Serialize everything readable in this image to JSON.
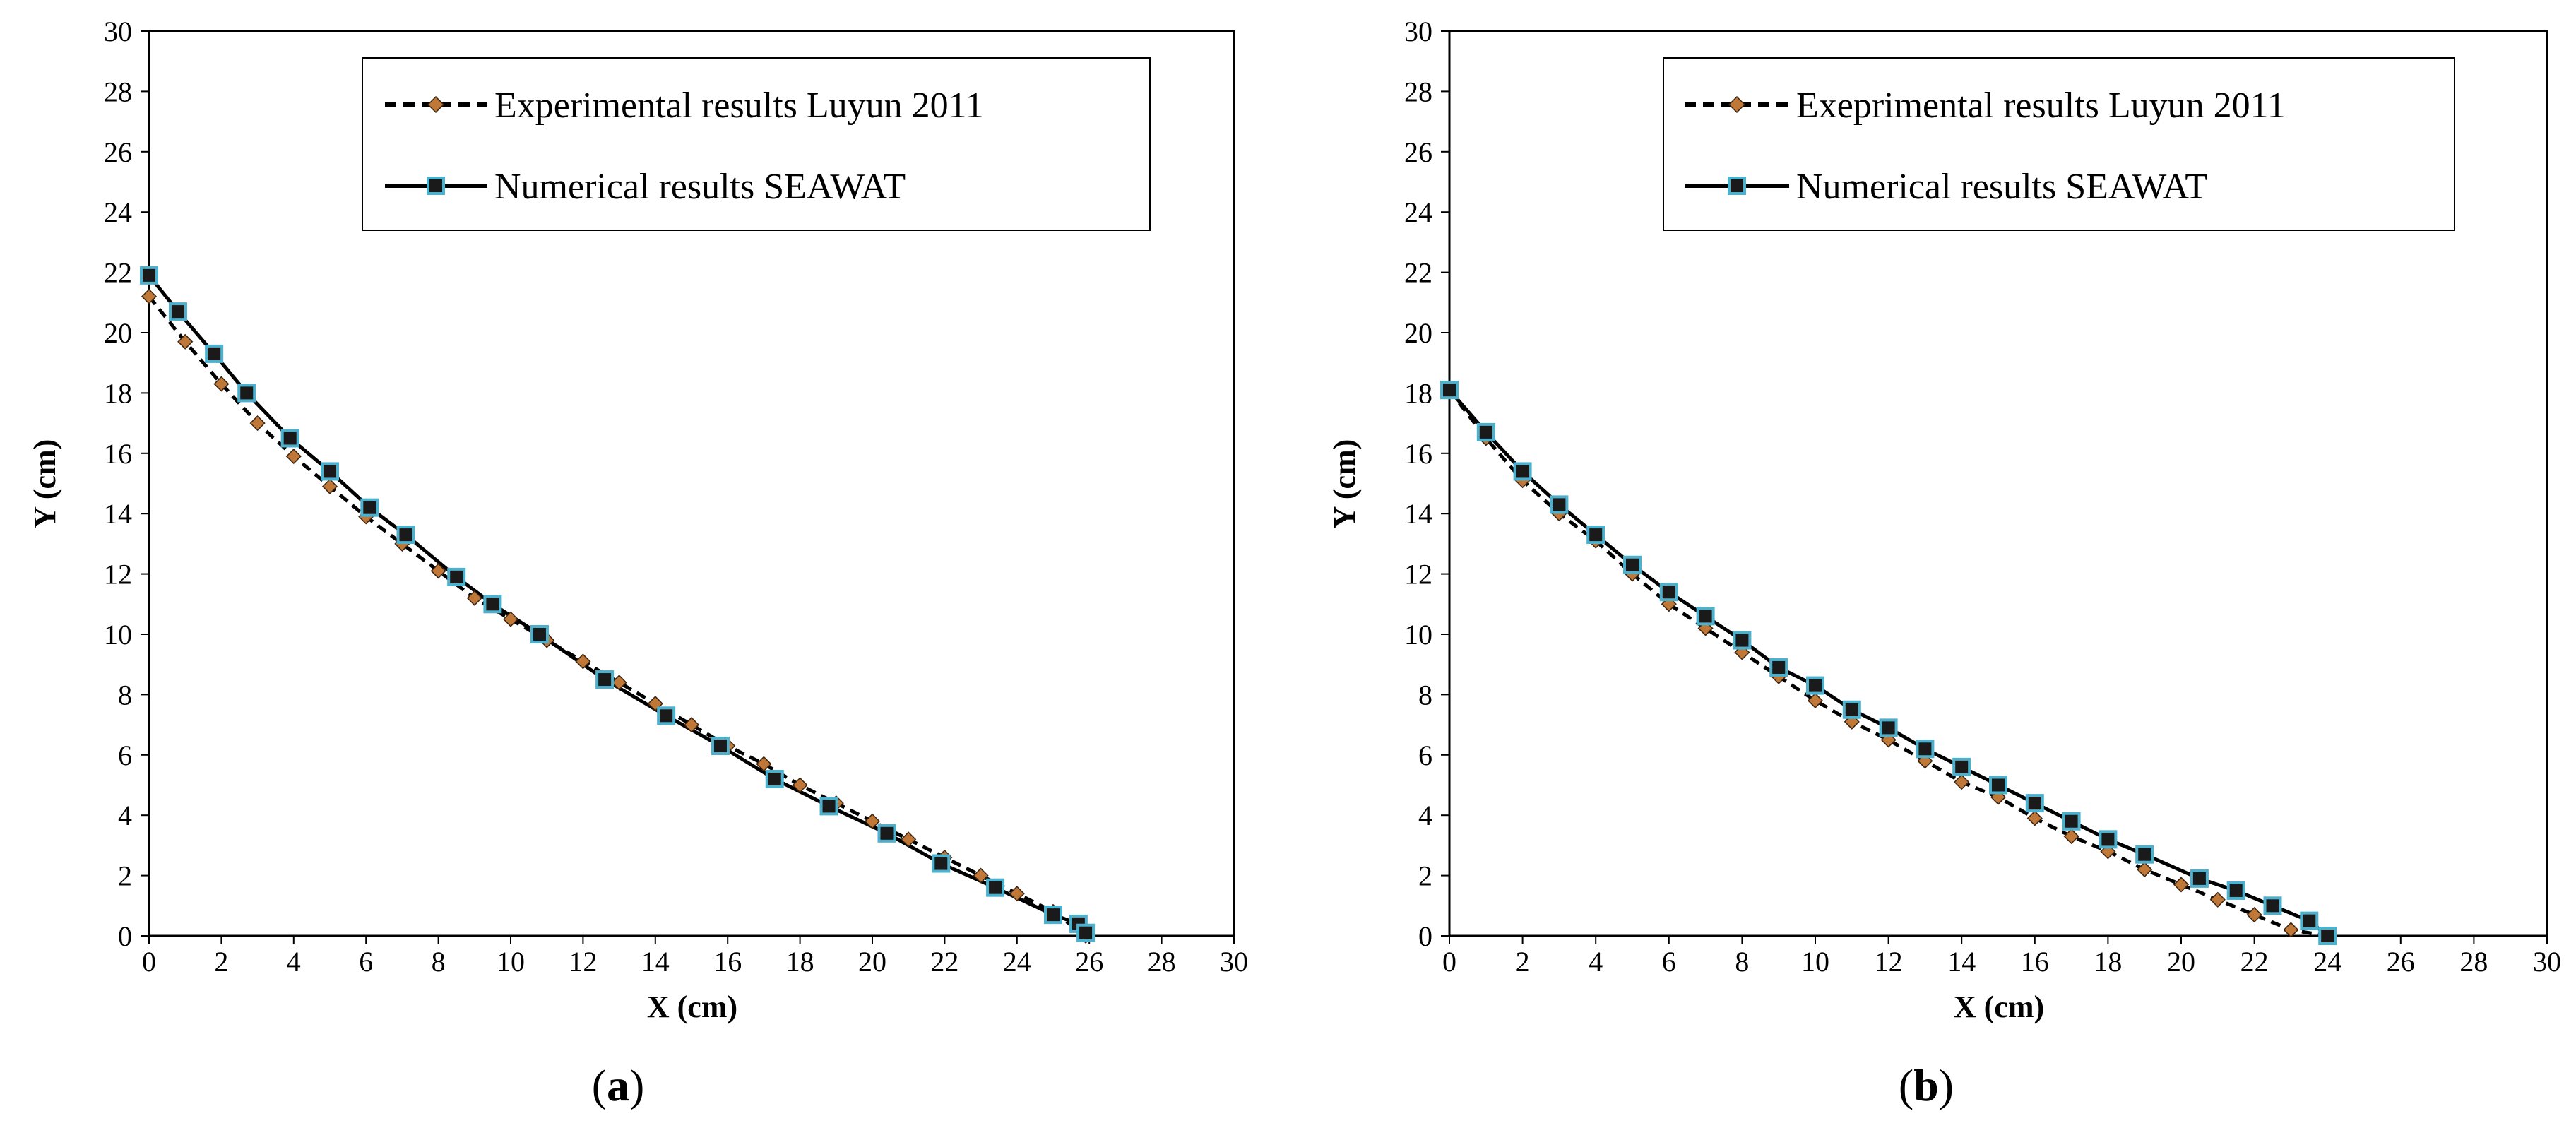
{
  "chart_data": [
    {
      "type": "line",
      "panel_label": "a",
      "xlabel": "X (cm)",
      "ylabel": "Y (cm)",
      "xlim": [
        0,
        30
      ],
      "ylim": [
        0,
        30
      ],
      "xticks": [
        0,
        2,
        4,
        6,
        8,
        10,
        12,
        14,
        16,
        18,
        20,
        22,
        24,
        26,
        28,
        30
      ],
      "yticks": [
        0,
        2,
        4,
        6,
        8,
        10,
        12,
        14,
        16,
        18,
        20,
        22,
        24,
        26,
        28,
        30
      ],
      "legend_position": "top-right",
      "series": [
        {
          "name": "Experimental results Luyun 2011",
          "style": "dashed",
          "marker": "diamond",
          "line_color": "#000000",
          "marker_color": "#C07838",
          "x": [
            0,
            1.0,
            2.0,
            3.0,
            4.0,
            5.0,
            6.0,
            7.0,
            8.0,
            9.0,
            10.0,
            11.0,
            12.0,
            13.0,
            14.0,
            15.0,
            16.0,
            17.0,
            18.0,
            19.0,
            20.0,
            21.0,
            22.0,
            23.0,
            24.0,
            25.0,
            25.9
          ],
          "y": [
            21.2,
            19.7,
            18.3,
            17.0,
            15.9,
            14.9,
            13.9,
            13.0,
            12.1,
            11.2,
            10.5,
            9.8,
            9.1,
            8.4,
            7.7,
            7.0,
            6.3,
            5.7,
            5.0,
            4.4,
            3.8,
            3.2,
            2.6,
            2.0,
            1.4,
            0.8,
            0.0
          ]
        },
        {
          "name": "Numerical results SEAWAT",
          "style": "solid",
          "marker": "square",
          "line_color": "#000000",
          "marker_color": "#1A1A1A",
          "marker_edge": "#4DB0CC",
          "x": [
            0,
            0.8,
            1.8,
            2.7,
            3.9,
            5.0,
            6.1,
            7.1,
            8.5,
            9.5,
            10.8,
            12.6,
            14.3,
            15.8,
            17.3,
            18.8,
            20.4,
            21.9,
            23.4,
            25.0,
            25.7,
            25.9
          ],
          "y": [
            21.9,
            20.7,
            19.3,
            18.0,
            16.5,
            15.4,
            14.2,
            13.3,
            11.9,
            11.0,
            10.0,
            8.5,
            7.3,
            6.3,
            5.2,
            4.3,
            3.4,
            2.4,
            1.6,
            0.7,
            0.4,
            0.1
          ]
        }
      ]
    },
    {
      "type": "line",
      "panel_label": "b",
      "xlabel": "X (cm)",
      "ylabel": "Y (cm)",
      "xlim": [
        0,
        30
      ],
      "ylim": [
        0,
        30
      ],
      "xticks": [
        0,
        2,
        4,
        6,
        8,
        10,
        12,
        14,
        16,
        18,
        20,
        22,
        24,
        26,
        28,
        30
      ],
      "yticks": [
        0,
        2,
        4,
        6,
        8,
        10,
        12,
        14,
        16,
        18,
        20,
        22,
        24,
        26,
        28,
        30
      ],
      "legend_position": "top-right",
      "series": [
        {
          "name": "Exeprimental results Luyun 2011",
          "style": "dashed",
          "marker": "diamond",
          "line_color": "#000000",
          "marker_color": "#C07838",
          "x": [
            0,
            1,
            2,
            3,
            4,
            5,
            6,
            7,
            8,
            9,
            10,
            11,
            12,
            13,
            14,
            15,
            16,
            17,
            18,
            19,
            20,
            21,
            22,
            23,
            24
          ],
          "y": [
            18.1,
            16.5,
            15.1,
            14.0,
            13.1,
            12.0,
            11.0,
            10.2,
            9.4,
            8.6,
            7.8,
            7.1,
            6.5,
            5.8,
            5.1,
            4.6,
            3.9,
            3.3,
            2.8,
            2.2,
            1.7,
            1.2,
            0.7,
            0.2,
            0.0
          ]
        },
        {
          "name": "Numerical results SEAWAT",
          "style": "solid",
          "marker": "square",
          "line_color": "#000000",
          "marker_color": "#1A1A1A",
          "marker_edge": "#4DB0CC",
          "x": [
            0,
            1,
            2,
            3,
            4,
            5,
            6,
            7,
            8,
            9,
            10,
            11,
            12,
            13,
            14,
            15,
            16,
            17,
            18,
            19,
            20.5,
            21.5,
            22.5,
            23.5,
            24
          ],
          "y": [
            18.1,
            16.7,
            15.4,
            14.3,
            13.3,
            12.3,
            11.4,
            10.6,
            9.8,
            8.9,
            8.3,
            7.5,
            6.9,
            6.2,
            5.6,
            5.0,
            4.4,
            3.8,
            3.2,
            2.7,
            1.9,
            1.5,
            1.0,
            0.5,
            0.0
          ]
        }
      ]
    }
  ]
}
